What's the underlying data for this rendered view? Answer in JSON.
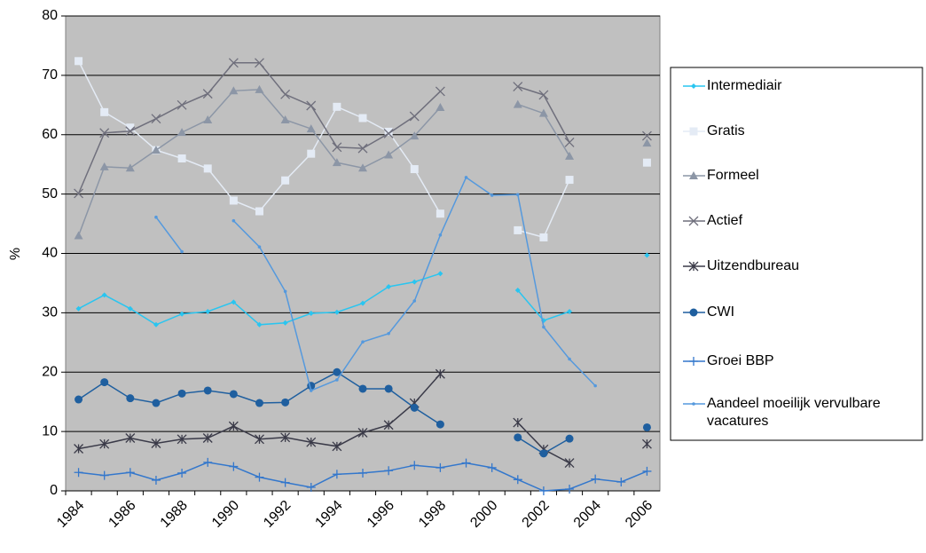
{
  "chart_data": {
    "type": "line",
    "y_label": "%",
    "categories": [
      "1984",
      null,
      "1986",
      null,
      "1988",
      null,
      "1990",
      null,
      "1992",
      null,
      "1994",
      null,
      "1996",
      null,
      "1998",
      null,
      "2000",
      null,
      "2002",
      null,
      "2004",
      null,
      "2006"
    ],
    "ylim": [
      0,
      80
    ],
    "yticks": [
      0,
      10,
      20,
      30,
      40,
      50,
      60,
      70,
      80
    ],
    "grid": true,
    "legend": "right",
    "series": [
      {
        "name": "Intermediair",
        "color": "#29c5f0",
        "marker": "diamond",
        "values": [
          30.7,
          33,
          30.7,
          28,
          29.8,
          30.2,
          31.8,
          28,
          28.3,
          29.9,
          30.1,
          31.6,
          34.4,
          35.2,
          36.6,
          null,
          null,
          33.8,
          28.7,
          30.2,
          null,
          null,
          39.7
        ]
      },
      {
        "name": "Gratis",
        "color": "#e4ebf5",
        "marker": "square",
        "values": [
          72.4,
          63.8,
          61.2,
          57.4,
          56,
          54.3,
          48.9,
          47.1,
          52.3,
          56.8,
          64.7,
          62.8,
          60.5,
          54.2,
          46.7,
          null,
          null,
          43.9,
          42.7,
          52.4,
          null,
          null,
          55.3
        ]
      },
      {
        "name": "Formeel",
        "color": "#8c96a6",
        "marker": "triangle",
        "values": [
          43,
          54.6,
          54.4,
          57.4,
          60.4,
          62.5,
          67.4,
          67.6,
          62.5,
          61,
          55.3,
          54.4,
          56.6,
          59.8,
          64.6,
          null,
          null,
          65.1,
          63.6,
          56.4,
          null,
          null,
          58.6
        ]
      },
      {
        "name": "Actief",
        "color": "#6f6f7c",
        "marker": "x",
        "values": [
          50.1,
          60.3,
          60.6,
          62.7,
          65,
          66.9,
          72.1,
          72.1,
          66.8,
          64.9,
          57.9,
          57.7,
          60.2,
          63.1,
          67.3,
          null,
          null,
          68.1,
          66.7,
          58.7,
          null,
          null,
          59.8
        ]
      },
      {
        "name": "Uitzendbureau",
        "color": "#3a3a48",
        "marker": "star",
        "values": [
          7.1,
          7.9,
          8.9,
          8,
          8.7,
          8.9,
          10.9,
          8.7,
          9,
          8.2,
          7.5,
          9.8,
          11.1,
          14.8,
          19.7,
          null,
          null,
          11.5,
          7,
          4.7,
          null,
          null,
          7.9
        ]
      },
      {
        "name": "CWI",
        "color": "#1f5f9f",
        "marker": "circle",
        "values": [
          15.4,
          18.3,
          15.6,
          14.8,
          16.4,
          16.9,
          16.3,
          14.8,
          14.9,
          17.7,
          20,
          17.2,
          17.2,
          14,
          11.2,
          null,
          null,
          9,
          6.3,
          8.8,
          null,
          null,
          10.7
        ]
      },
      {
        "name": "Groei BBP",
        "color": "#3377cc",
        "marker": "plus",
        "values": [
          3.1,
          2.6,
          3.1,
          1.8,
          3,
          4.8,
          4.1,
          2.3,
          1.4,
          0.6,
          2.8,
          3,
          3.4,
          4.3,
          3.9,
          4.7,
          3.9,
          1.9,
          0,
          0.3,
          2,
          1.5,
          3.3
        ]
      },
      {
        "name": "Aandeel moeilijk vervulbare vacatures",
        "color": "#5599dd",
        "marker": "dot",
        "values": [
          null,
          null,
          null,
          46.1,
          40.3,
          null,
          45.5,
          41.1,
          33.6,
          16.9,
          18.7,
          25.1,
          26.5,
          32,
          43.1,
          52.8,
          49.8,
          49.9,
          27.6,
          22.2,
          17.7,
          null,
          null
        ]
      }
    ]
  }
}
